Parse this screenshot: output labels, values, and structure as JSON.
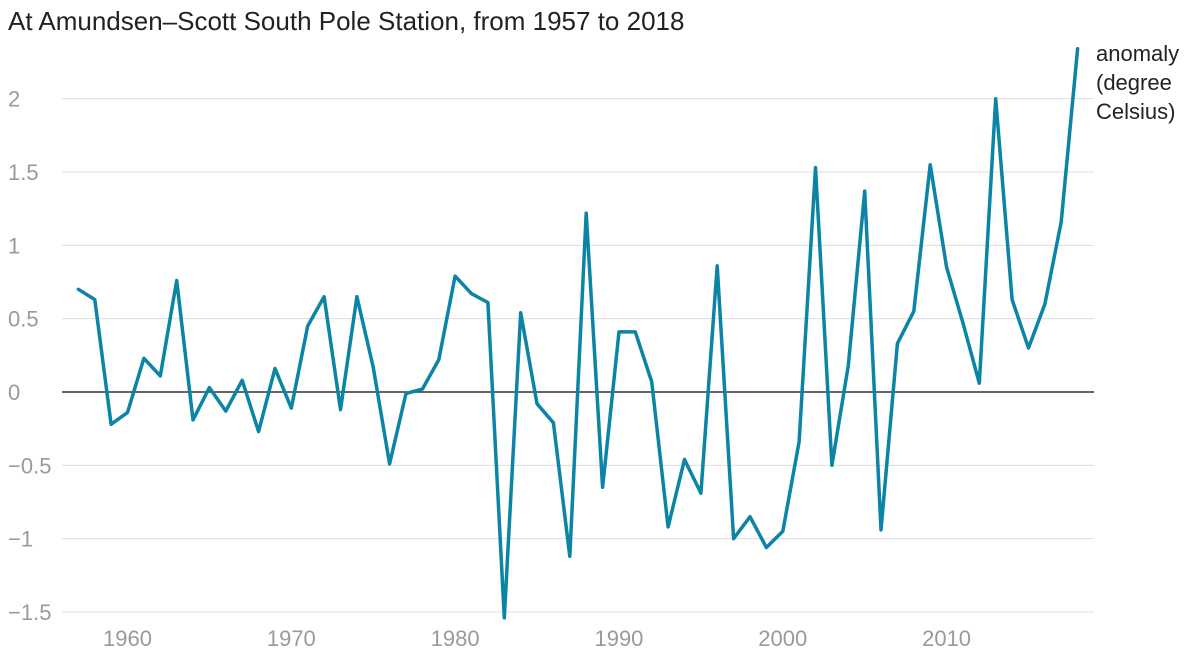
{
  "chart_data": {
    "type": "line",
    "title": "At Amundsen–Scott South Pole Station, from 1957 to 2018",
    "xlabel": "",
    "ylabel": "",
    "xlim": [
      1956,
      2019
    ],
    "ylim": [
      -1.5,
      2.4
    ],
    "xticks": [
      1960,
      1970,
      1980,
      1990,
      2000,
      2010
    ],
    "yticks": [
      -1.5,
      -1,
      -0.5,
      0,
      0.5,
      1,
      1.5,
      2
    ],
    "ytick_labels": [
      "−1.5",
      "−1",
      "−0.5",
      "0",
      "0.5",
      "1",
      "1.5",
      "2"
    ],
    "grid": true,
    "legend": "none",
    "series": [
      {
        "name": "anomaly (degree Celsius)",
        "label_lines": [
          "anomaly",
          "(degree",
          "Celsius)"
        ],
        "color": "#0b84a5",
        "x": [
          1957,
          1958,
          1959,
          1960,
          1961,
          1962,
          1963,
          1964,
          1965,
          1966,
          1967,
          1968,
          1969,
          1970,
          1971,
          1972,
          1973,
          1974,
          1975,
          1976,
          1977,
          1978,
          1979,
          1980,
          1981,
          1982,
          1983,
          1984,
          1985,
          1986,
          1987,
          1988,
          1989,
          1990,
          1991,
          1992,
          1993,
          1994,
          1995,
          1996,
          1997,
          1998,
          1999,
          2000,
          2001,
          2002,
          2003,
          2004,
          2005,
          2006,
          2007,
          2008,
          2009,
          2010,
          2011,
          2012,
          2013,
          2014,
          2015,
          2016,
          2017,
          2018
        ],
        "y": [
          0.7,
          0.63,
          -0.22,
          -0.14,
          0.23,
          0.11,
          0.76,
          -0.19,
          0.03,
          -0.13,
          0.08,
          -0.27,
          0.16,
          -0.11,
          0.45,
          0.65,
          -0.12,
          0.65,
          0.17,
          -0.49,
          -0.01,
          0.02,
          0.22,
          0.79,
          0.67,
          0.61,
          -1.54,
          0.54,
          -0.08,
          -0.21,
          -1.12,
          1.22,
          -0.65,
          0.41,
          0.41,
          0.07,
          -0.92,
          -0.46,
          -0.69,
          0.86,
          -1.0,
          -0.85,
          -1.06,
          -0.95,
          -0.34,
          1.53,
          -0.5,
          0.18,
          1.37,
          -0.94,
          0.33,
          0.55,
          1.55,
          0.85,
          0.47,
          0.06,
          2.0,
          0.63,
          0.3,
          0.6,
          1.16,
          2.34
        ]
      }
    ]
  }
}
